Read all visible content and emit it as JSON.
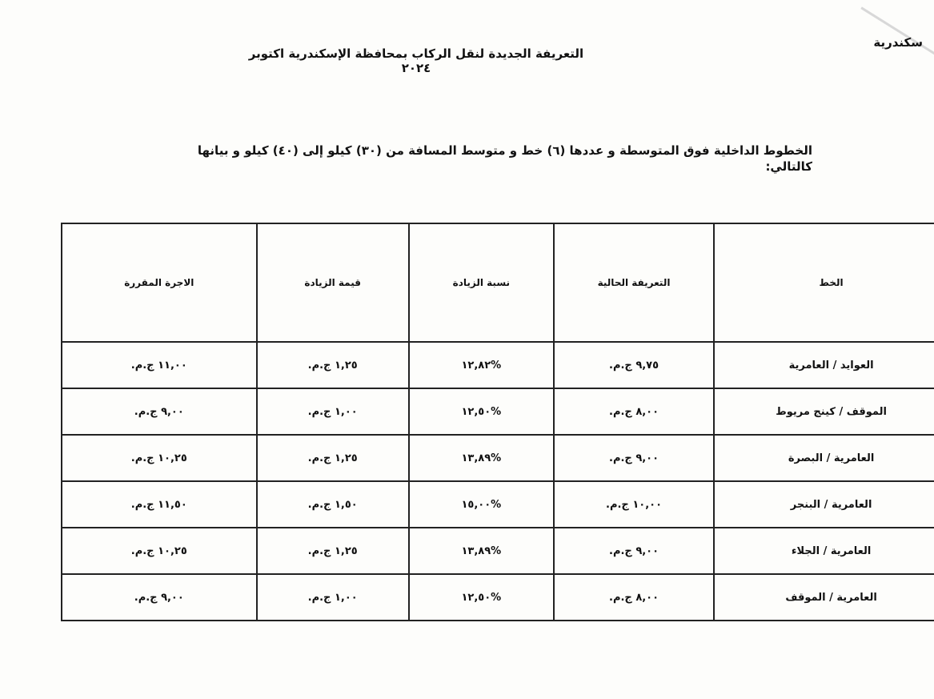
{
  "corner_text": "سكندرية",
  "title": "التعريفة الجديدة لنقل الركاب بمحافظة الإسكندرية اكتوبر ٢٠٢٤",
  "subtitle": "الخطوط الداخلية فوق المتوسطة و عددها (٦) خط و متوسط المسافة من (٣٠) كيلو إلى (٤٠) كيلو و بيانها كالتالي:",
  "table": {
    "headers": [
      "الخط",
      "التعريفة الحالية",
      "نسبة الزيادة",
      "قيمة الزيادة",
      "الاجرة المقررة"
    ],
    "rows": [
      [
        "العوايد / العامرية",
        "٩,٧٥ ج.م.",
        "%١٢,٨٢",
        "١,٢٥ ج.م.",
        "١١,٠٠ ج.م."
      ],
      [
        "الموقف / كينج مريوط",
        "٨,٠٠ ج.م.",
        "%١٢,٥٠",
        "١,٠٠ ج.م.",
        "٩,٠٠ ج.م."
      ],
      [
        "العامرية / البصرة",
        "٩,٠٠ ج.م.",
        "%١٣,٨٩",
        "١,٢٥ ج.م.",
        "١٠,٢٥ ج.م."
      ],
      [
        "العامرية / البنجر",
        "١٠,٠٠ ج.م.",
        "%١٥,٠٠",
        "١,٥٠ ج.م.",
        "١١,٥٠ ج.م."
      ],
      [
        "العامرية / الجلاء",
        "٩,٠٠ ج.م.",
        "%١٣,٨٩",
        "١,٢٥ ج.م.",
        "١٠,٢٥ ج.م."
      ],
      [
        "العامرية / الموقف",
        "٨,٠٠ ج.م.",
        "%١٢,٥٠",
        "١,٠٠ ج.م.",
        "٩,٠٠ ج.م."
      ]
    ]
  }
}
